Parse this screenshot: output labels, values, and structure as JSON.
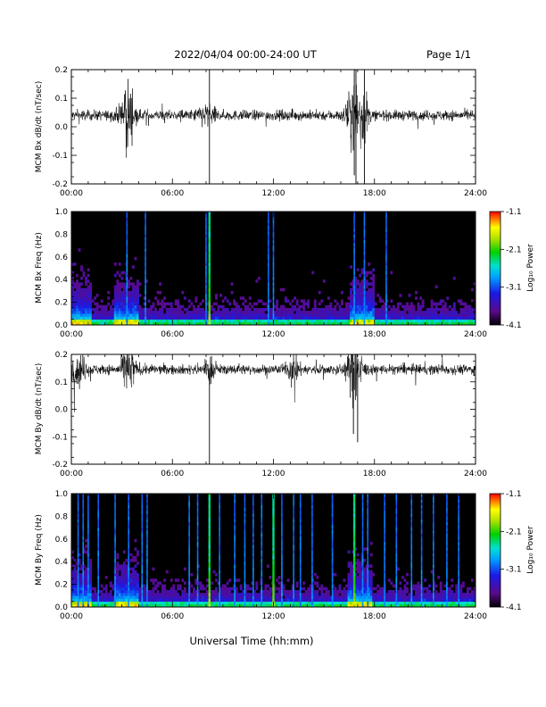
{
  "header": {
    "title": "2022/04/04  00:00-24:00 UT",
    "page": "Page 1/1"
  },
  "footer": {
    "xlabel": "Universal Time (hh:mm)"
  },
  "chart_data": [
    {
      "type": "line",
      "id": "bx",
      "ylabel": "MCM Bx dB/dt (nT/sec)",
      "xlim": [
        0,
        24
      ],
      "ylim": [
        -0.2,
        0.2
      ],
      "x_ticks": [
        "00:00",
        "06:00",
        "12:00",
        "18:00",
        "24:00"
      ],
      "y_ticks": [
        "-0.2",
        "-0.1",
        "0.0",
        "0.1",
        "0.2"
      ],
      "baseline": 0.04,
      "bursts": [
        {
          "t": 3.3,
          "w": 0.35,
          "a": 0.12
        },
        {
          "t": 8.0,
          "w": 0.5,
          "a": 0.03
        },
        {
          "t": 16.8,
          "w": 0.4,
          "a": 0.11
        },
        {
          "t": 17.4,
          "w": 0.25,
          "a": 0.08
        }
      ],
      "spikes": [
        {
          "t": 8.2,
          "lo": -0.2,
          "hi": 0.2
        },
        {
          "t": 16.8,
          "lo": -0.17,
          "hi": 0.2
        },
        {
          "t": 16.9,
          "lo": -0.2,
          "hi": 0.2
        },
        {
          "t": 17.4,
          "lo": -0.2,
          "hi": 0.2
        }
      ]
    },
    {
      "type": "heatmap",
      "id": "bxspec",
      "ylabel": "MCM Bx Freq (Hz)",
      "xlim": [
        0,
        24
      ],
      "ylim": [
        0,
        1.0
      ],
      "x_ticks": [
        "00:00",
        "06:00",
        "12:00",
        "18:00",
        "24:00"
      ],
      "y_ticks": [
        "0.0",
        "0.2",
        "0.4",
        "0.6",
        "0.8",
        "1.0"
      ],
      "colorbar": {
        "label": "Log₁₀ Power",
        "range": [
          -4.1,
          -1.1
        ],
        "ticks": [
          "-1.1",
          "-2.1",
          "-3.1",
          "-4.1"
        ]
      },
      "strong_lines": [
        8.2
      ],
      "faint_lines": [
        3.3,
        4.4,
        8.0,
        11.7,
        12.0,
        16.8,
        17.4,
        18.7
      ],
      "enhanced_intervals": [
        [
          0,
          1.2
        ],
        [
          2.5,
          4.0
        ],
        [
          16.5,
          18.0
        ]
      ]
    },
    {
      "type": "line",
      "id": "by",
      "ylabel": "MCM By dB/dt (nT/sec)",
      "xlim": [
        0,
        24
      ],
      "ylim": [
        -0.2,
        0.2
      ],
      "x_ticks": [
        "00:00",
        "06:00",
        "12:00",
        "18:00",
        "24:00"
      ],
      "y_ticks": [
        "-0.2",
        "-0.1",
        "0.0",
        "0.1",
        "0.2"
      ],
      "baseline": 0.145,
      "bursts": [
        {
          "t": 0.4,
          "w": 0.5,
          "a": 0.05
        },
        {
          "t": 3.4,
          "w": 0.35,
          "a": 0.1
        },
        {
          "t": 8.2,
          "w": 0.3,
          "a": 0.04
        },
        {
          "t": 13.2,
          "w": 0.3,
          "a": 0.05
        },
        {
          "t": 16.8,
          "w": 0.4,
          "a": 0.12
        }
      ],
      "spikes": [
        {
          "t": 8.2,
          "lo": -0.2,
          "hi": 0.15
        },
        {
          "t": 16.75,
          "lo": -0.09,
          "hi": 0.15
        },
        {
          "t": 17.0,
          "lo": -0.12,
          "hi": 0.15
        }
      ]
    },
    {
      "type": "heatmap",
      "id": "byspec",
      "ylabel": "MCM By Freq (Hz)",
      "xlim": [
        0,
        24
      ],
      "ylim": [
        0,
        1.0
      ],
      "x_ticks": [
        "00:00",
        "06:00",
        "12:00",
        "18:00",
        "24:00"
      ],
      "y_ticks": [
        "0.0",
        "0.2",
        "0.4",
        "0.6",
        "0.8",
        "1.0"
      ],
      "colorbar": {
        "label": "Log₁₀ Power",
        "range": [
          -4.1,
          -1.1
        ],
        "ticks": [
          "-1.1",
          "-2.1",
          "-3.1",
          "-4.1"
        ]
      },
      "strong_lines": [
        8.2,
        12.0,
        16.8
      ],
      "faint_lines": [
        0.4,
        0.7,
        1.0,
        1.6,
        2.6,
        3.4,
        4.2,
        4.5,
        7.0,
        7.5,
        8.8,
        9.7,
        10.3,
        10.8,
        11.3,
        12.5,
        13.2,
        13.6,
        14.3,
        15.5,
        17.3,
        17.6,
        18.6,
        19.3,
        20.2,
        20.8,
        21.5,
        22.3,
        23.0
      ],
      "enhanced_intervals": [
        [
          0,
          1.2
        ],
        [
          2.6,
          4.0
        ],
        [
          16.4,
          17.8
        ]
      ]
    }
  ]
}
